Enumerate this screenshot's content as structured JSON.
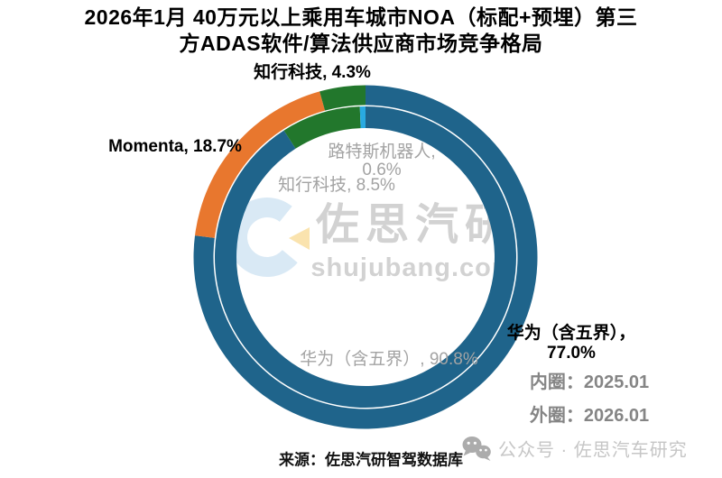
{
  "title": {
    "line1": "2026年1月 40万元以上乘用车城市NOA（标配+预埋）第三",
    "line2": "方ADAS软件/算法供应商市场竞争格局"
  },
  "chart_data": {
    "type": "pie",
    "subtype": "double-ring-donut",
    "title": "2026年1月 40万元以上乘用车城市NOA（标配+预埋）第三方ADAS软件/算法供应商市场竞争格局",
    "direction": "clockwise",
    "start_angle_deg": 0,
    "rings": [
      {
        "id": "inner",
        "name": "内圈",
        "period": "2025.01",
        "segments": [
          {
            "label": "华为（含五界）",
            "value": 90.8,
            "color": "blue"
          },
          {
            "label": "知行科技",
            "value": 8.5,
            "color": "green"
          },
          {
            "label": "路特斯机器人",
            "value": 0.6,
            "color": "cyan"
          }
        ]
      },
      {
        "id": "outer",
        "name": "外圈",
        "period": "2026.01",
        "segments": [
          {
            "label": "华为（含五界）",
            "value": 77.0,
            "color": "blue"
          },
          {
            "label": "Momenta",
            "value": 18.7,
            "color": "orange"
          },
          {
            "label": "知行科技",
            "value": 4.3,
            "color": "green"
          }
        ]
      }
    ],
    "colors": {
      "blue": "#1F648B",
      "orange": "#E8772E",
      "green": "#22772C",
      "cyan": "#29AAE1"
    }
  },
  "labels": {
    "outer_zhixing": "知行科技, 4.3%",
    "outer_momenta": "Momenta, 18.7%",
    "inner_lotus_line1": "路特斯机器人,",
    "inner_lotus_line2": "0.6%",
    "inner_zhixing": "知行科技, 8.5%",
    "inner_huawei": "华为（含五界）, 90.8%",
    "outer_huawei_line1": "华为（含五界），",
    "outer_huawei_line2": "77.0%",
    "legend_inner": "内圈：2025.01",
    "legend_outer": "外圈：2026.01"
  },
  "watermark": {
    "brand": "佐思汽研",
    "site": "shujubang.com",
    "colors": {
      "c_shape": "#D9E9F5",
      "triangle": "#FAE3AE",
      "text": "#D2D2D2"
    }
  },
  "footer": {
    "source": "来源：佐思汽研智驾数据库",
    "wechat": "公众号 · 佐思汽车研究"
  }
}
